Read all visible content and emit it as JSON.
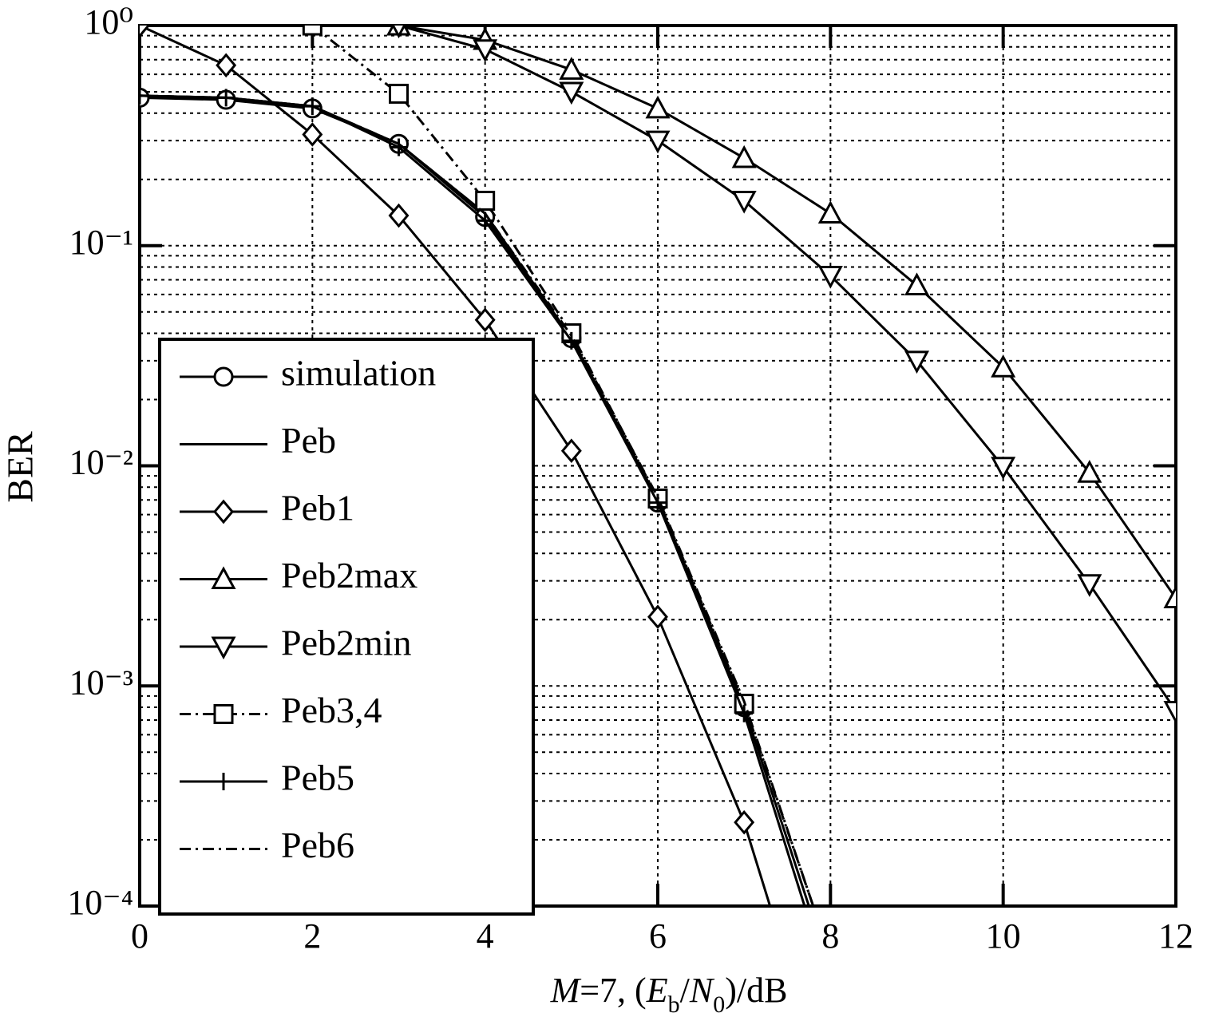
{
  "chart_data": {
    "type": "line",
    "x_label": [
      {
        "text": "M",
        "style": "italic"
      },
      {
        "text": "=7, (",
        "style": "normal"
      },
      {
        "text": "E",
        "style": "italic"
      },
      {
        "text": "b",
        "style": "sub"
      },
      {
        "text": "/",
        "style": "normal"
      },
      {
        "text": "N",
        "style": "italic"
      },
      {
        "text": "0",
        "style": "sub"
      },
      {
        "text": ")/dB",
        "style": "normal"
      }
    ],
    "y_label": "BER",
    "xlim": [
      0,
      12
    ],
    "xticks": [
      0,
      2,
      4,
      6,
      8,
      10,
      12
    ],
    "ylim": [
      0.0001,
      1
    ],
    "log_y": true,
    "yticks": [
      {
        "value": 1,
        "label": "10⁰"
      },
      {
        "value": 0.1,
        "label": "10⁻¹"
      },
      {
        "value": 0.01,
        "label": "10⁻²"
      },
      {
        "value": 0.001,
        "label": "10⁻³"
      },
      {
        "value": 0.0001,
        "label": "10⁻⁴"
      }
    ],
    "grid": true,
    "minor_grid": true,
    "legend": "lower left",
    "series": [
      {
        "name": "simulation",
        "color": "#000",
        "marker": "circle",
        "dash": "solid",
        "x": [
          0,
          1,
          2,
          3,
          4,
          5,
          6,
          7
        ],
        "values": [
          0.47,
          0.46,
          0.42,
          0.29,
          0.135,
          0.038,
          0.0068,
          0.0008
        ]
      },
      {
        "name": "Peb",
        "color": "#000",
        "marker": "none",
        "dash": "solid",
        "x": [
          0,
          1,
          2,
          3,
          4,
          5,
          6,
          7,
          7.75
        ],
        "values": [
          0.48,
          0.47,
          0.43,
          0.29,
          0.14,
          0.038,
          0.007,
          0.0008,
          0.0001
        ]
      },
      {
        "name": "Peb1",
        "color": "#000",
        "marker": "diamond",
        "dash": "solid",
        "x": [
          0,
          1,
          2,
          3,
          4,
          5,
          6,
          7,
          7.3
        ],
        "values": [
          1.0,
          0.66,
          0.32,
          0.137,
          0.046,
          0.0117,
          0.00206,
          0.00024,
          0.0001
        ]
      },
      {
        "name": "Peb2max",
        "color": "#000",
        "marker": "triangle-up",
        "dash": "solid",
        "x": [
          3,
          4,
          5,
          6,
          7,
          8,
          9,
          10,
          11,
          12
        ],
        "values": [
          1.0,
          0.86,
          0.63,
          0.42,
          0.25,
          0.14,
          0.066,
          0.028,
          0.0093,
          0.0025
        ]
      },
      {
        "name": "Peb2min",
        "color": "#000",
        "marker": "triangle-down",
        "dash": "solid",
        "x": [
          3,
          4,
          5,
          6,
          7,
          8,
          9,
          10,
          11,
          12
        ],
        "values": [
          1.0,
          0.78,
          0.5,
          0.3,
          0.16,
          0.073,
          0.03,
          0.0099,
          0.0029,
          0.00077
        ]
      },
      {
        "name": "Peb3,4",
        "color": "#000",
        "marker": "square",
        "dash": "dashdot",
        "x": [
          2,
          3,
          4,
          5,
          6,
          7,
          7.8
        ],
        "values": [
          1.0,
          0.49,
          0.16,
          0.04,
          0.0071,
          0.00083,
          0.0001
        ]
      },
      {
        "name": "Peb5",
        "color": "#000",
        "marker": "plus",
        "dash": "solid",
        "x": [
          0,
          1,
          2,
          3,
          4,
          5,
          6,
          7,
          7.7
        ],
        "values": [
          0.48,
          0.47,
          0.43,
          0.28,
          0.13,
          0.037,
          0.0068,
          0.00075,
          0.0001
        ]
      },
      {
        "name": "Peb6",
        "color": "#000",
        "marker": "none",
        "dash": "dashdot",
        "x": [
          0,
          1,
          2,
          3,
          4,
          5,
          6,
          7,
          7.8
        ],
        "values": [
          0.48,
          0.47,
          0.43,
          0.29,
          0.14,
          0.039,
          0.0072,
          0.00085,
          0.0001
        ]
      }
    ]
  }
}
